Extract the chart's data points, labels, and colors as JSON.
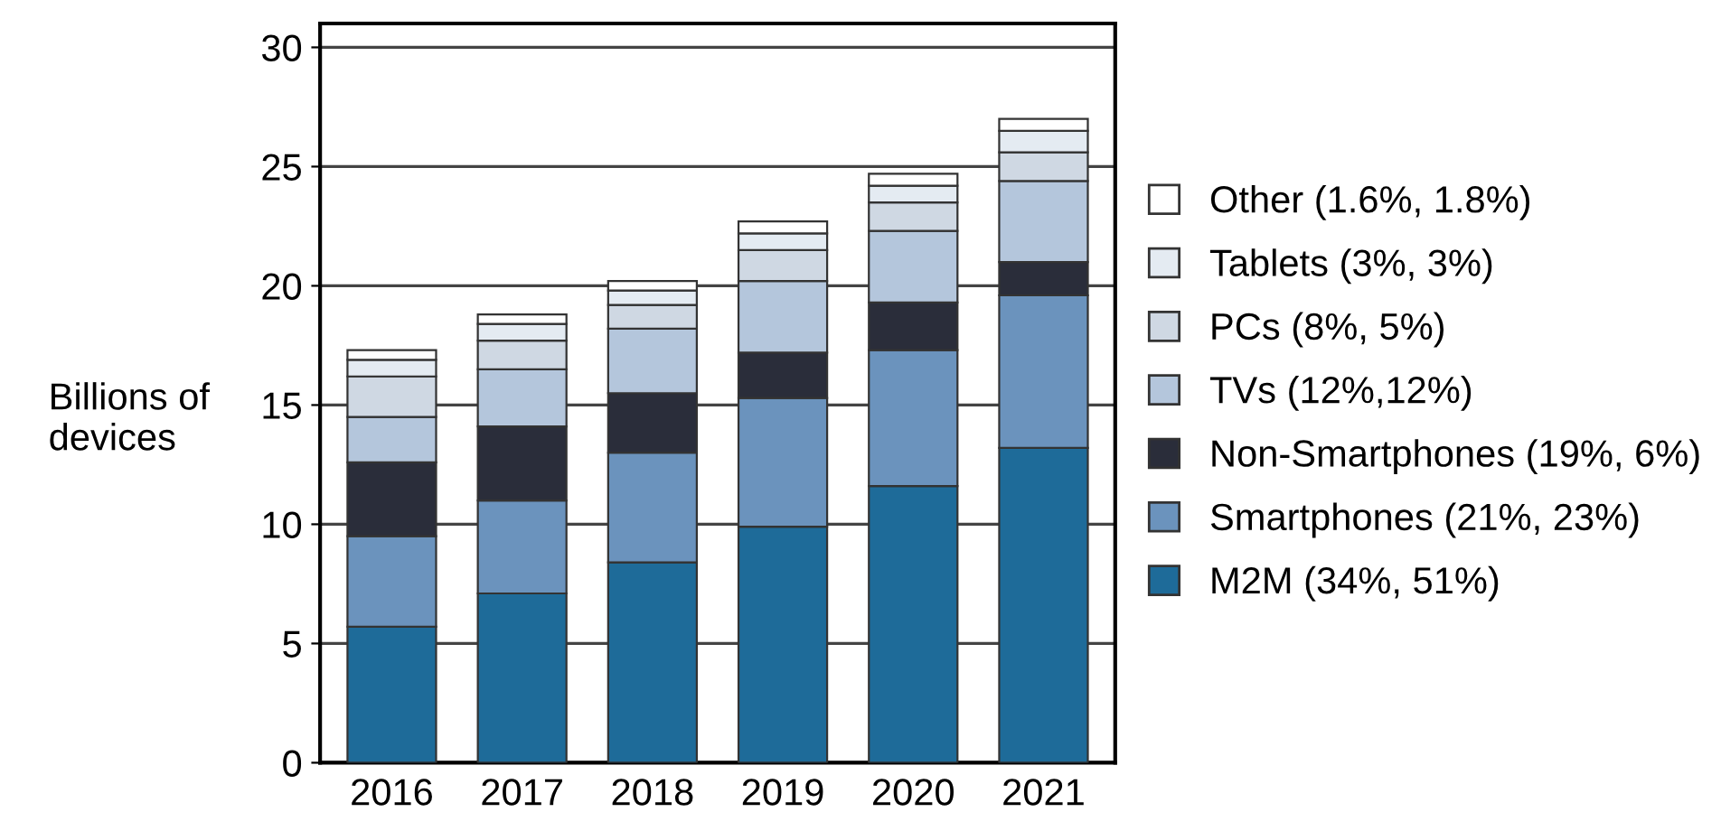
{
  "chart_data": {
    "type": "bar",
    "stacked": true,
    "ylabel": "Billions of devices",
    "categories": [
      "2016",
      "2017",
      "2018",
      "2019",
      "2020",
      "2021"
    ],
    "series": [
      {
        "name": "M2M (34%, 51%)",
        "color": "#1e6b99",
        "values": [
          5.7,
          7.1,
          8.4,
          9.9,
          11.6,
          13.2
        ]
      },
      {
        "name": "Smartphones (21%, 23%)",
        "color": "#6b93bd",
        "values": [
          3.8,
          3.9,
          4.6,
          5.4,
          5.7,
          6.4
        ]
      },
      {
        "name": "Non-Smartphones (19%, 6%)",
        "color": "#2a2d3a",
        "values": [
          3.1,
          3.1,
          2.5,
          1.9,
          2.0,
          1.4
        ]
      },
      {
        "name": "TVs (12%,12%)",
        "color": "#b4c6dc",
        "values": [
          1.9,
          2.4,
          2.7,
          3.0,
          3.0,
          3.4
        ]
      },
      {
        "name": "PCs (8%, 5%)",
        "color": "#cfd8e3",
        "values": [
          1.7,
          1.2,
          1.0,
          1.3,
          1.2,
          1.2
        ]
      },
      {
        "name": "Tablets (3%, 3%)",
        "color": "#e4ebf2",
        "values": [
          0.7,
          0.7,
          0.6,
          0.7,
          0.7,
          0.9
        ]
      },
      {
        "name": "Other (1.6%, 1.8%)",
        "color": "#ffffff",
        "values": [
          0.4,
          0.4,
          0.4,
          0.5,
          0.5,
          0.5
        ]
      }
    ],
    "ylim": [
      0,
      31
    ],
    "yticks": [
      0,
      5,
      10,
      15,
      20,
      25,
      30
    ],
    "grid": "y",
    "legend": "right"
  }
}
